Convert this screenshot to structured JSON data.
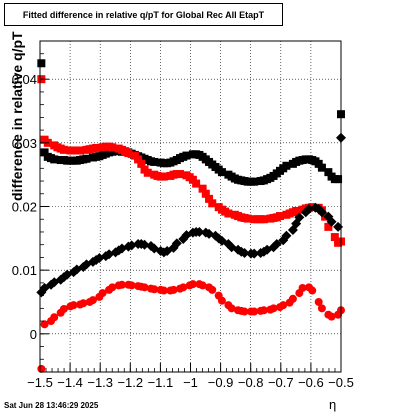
{
  "title": "Fitted difference in relative q/pT for Global Rec All EtapT",
  "datestamp": "Sat Jun 28 13:46:29 2025",
  "chart_data": {
    "type": "scatter",
    "title": "Fitted difference in relative q/pT for Global Rec All EtapT",
    "xlabel": "η",
    "ylabel": "difference in relative q/pT",
    "xlim": [
      -1.5,
      -0.5
    ],
    "ylim": [
      -0.006,
      0.046
    ],
    "xticks": [
      -1.5,
      -1.4,
      -1.3,
      -1.2,
      -1.1,
      -1,
      -0.9,
      -0.8,
      -0.7,
      -0.6,
      -0.5
    ],
    "xtick_labels": [
      "−1.5",
      "−1.4",
      "−1.3",
      "−1.2",
      "−1.1",
      "−1",
      "−0.9",
      "−0.8",
      "−0.7",
      "−0.6",
      "−0.5"
    ],
    "yticks": [
      0,
      0.01,
      0.02,
      0.03,
      0.04
    ],
    "ytick_labels": [
      "0",
      "0.01",
      "0.02",
      "0.03",
      "0.04"
    ],
    "grid": true,
    "x": [
      -1.4955,
      -1.4848,
      -1.4741,
      -1.4634,
      -1.4527,
      -1.442,
      -1.4313,
      -1.4205,
      -1.4098,
      -1.3991,
      -1.3884,
      -1.3777,
      -1.367,
      -1.3563,
      -1.3455,
      -1.3348,
      -1.3241,
      -1.3134,
      -1.3027,
      -1.292,
      -1.2813,
      -1.2705,
      -1.2598,
      -1.2491,
      -1.2384,
      -1.2277,
      -1.217,
      -1.2063,
      -1.1955,
      -1.1848,
      -1.1741,
      -1.1634,
      -1.1527,
      -1.142,
      -1.1313,
      -1.1205,
      -1.1098,
      -1.0991,
      -1.0884,
      -1.0777,
      -1.067,
      -1.0563,
      -1.0455,
      -1.0348,
      -1.0241,
      -1.0134,
      -1.0027,
      -0.992,
      -0.9813,
      -0.9705,
      -0.9598,
      -0.9491,
      -0.9384,
      -0.9277,
      -0.917,
      -0.9063,
      -0.8955,
      -0.8848,
      -0.8741,
      -0.8634,
      -0.8527,
      -0.842,
      -0.8313,
      -0.8205,
      -0.8098,
      -0.7991,
      -0.7884,
      -0.7777,
      -0.767,
      -0.7563,
      -0.7455,
      -0.7348,
      -0.7241,
      -0.7134,
      -0.7027,
      -0.692,
      -0.6813,
      -0.6705,
      -0.6598,
      -0.6491,
      -0.6384,
      -0.6277,
      -0.617,
      -0.6063,
      -0.5955,
      -0.5848,
      -0.5741,
      -0.5634,
      -0.5527,
      -0.542,
      -0.5313,
      -0.5205,
      -0.5098,
      -0.5
    ],
    "series": [
      {
        "marker": "square",
        "color": "#000000",
        "y": [
          0.0425,
          0.0285,
          0.0278,
          0.0276,
          0.0274,
          0.0273,
          0.0273,
          0.0272,
          0.0272,
          0.0272,
          0.0272,
          0.0273,
          0.0274,
          0.0275,
          0.0277,
          0.0278,
          0.0279,
          0.0281,
          0.0283,
          0.0285,
          0.0286,
          0.0287,
          0.0287,
          0.0286,
          0.0285,
          0.0283,
          0.0281,
          0.0279,
          0.0277,
          0.0275,
          0.0273,
          0.0271,
          0.027,
          0.0269,
          0.0268,
          0.0268,
          0.0269,
          0.0271,
          0.0273,
          0.0276,
          0.0278,
          0.028,
          0.0282,
          0.0282,
          0.0281,
          0.0278,
          0.0274,
          0.027,
          0.0266,
          0.0262,
          0.0258,
          0.0254,
          0.025,
          0.0247,
          0.0244,
          0.0242,
          0.0241,
          0.024,
          0.0239,
          0.0239,
          0.0239,
          0.024,
          0.0241,
          0.0243,
          0.0245,
          0.0248,
          0.0252,
          0.0256,
          0.026,
          0.0264,
          0.0267,
          0.027,
          0.0272,
          0.0273,
          0.0274,
          0.0274,
          0.0273,
          0.0271,
          0.0267,
          0.0261,
          0.0254,
          0.0247,
          0.0243,
          0.0243,
          0.0345
        ]
      },
      {
        "marker": "square",
        "color": "#ff0000",
        "y": [
          0.04,
          0.0305,
          0.03,
          0.0296,
          0.0293,
          0.0291,
          0.0289,
          0.0288,
          0.0288,
          0.0288,
          0.0288,
          0.0289,
          0.029,
          0.0291,
          0.0292,
          0.0293,
          0.0294,
          0.0294,
          0.0293,
          0.0291,
          0.0289,
          0.0287,
          0.0284,
          0.028,
          0.0274,
          0.0267,
          0.0258,
          0.0253,
          0.025,
          0.0248,
          0.0247,
          0.0247,
          0.0248,
          0.025,
          0.0251,
          0.0251,
          0.0249,
          0.0246,
          0.0242,
          0.0236,
          0.0228,
          0.022,
          0.0212,
          0.0205,
          0.0199,
          0.0195,
          0.0192,
          0.0189,
          0.0187,
          0.0185,
          0.0183,
          0.0182,
          0.0181,
          0.018,
          0.018,
          0.018,
          0.018,
          0.0181,
          0.0182,
          0.0183,
          0.0185,
          0.0187,
          0.0189,
          0.0191,
          0.0193,
          0.0195,
          0.0197,
          0.0198,
          0.0199,
          0.0198,
          0.0194,
          0.0184,
          0.0168,
          0.0152,
          0.0143,
          0.0145
        ]
      },
      {
        "marker": "diamond",
        "color": "#000000",
        "y": [
          0.0065,
          0.0072,
          0.0077,
          0.0081,
          0.0085,
          0.0089,
          0.0093,
          0.0097,
          0.0101,
          0.0105,
          0.0109,
          0.0113,
          0.0116,
          0.0119,
          0.0122,
          0.0125,
          0.0128,
          0.0131,
          0.0134,
          0.0137,
          0.0139,
          0.0141,
          0.0141,
          0.014,
          0.0138,
          0.0134,
          0.013,
          0.0128,
          0.013,
          0.0135,
          0.0142,
          0.0149,
          0.0155,
          0.0159,
          0.016,
          0.016,
          0.0159,
          0.0157,
          0.0154,
          0.015,
          0.0146,
          0.0141,
          0.0136,
          0.0132,
          0.0129,
          0.0127,
          0.0126,
          0.0126,
          0.0127,
          0.0129,
          0.0132,
          0.0136,
          0.0141,
          0.0147,
          0.0154,
          0.0163,
          0.0173,
          0.0183,
          0.0191,
          0.0196,
          0.0198,
          0.0196,
          0.0191,
          0.0184,
          0.0176,
          0.0168,
          0.0308
        ]
      },
      {
        "marker": "circle",
        "color": "#ff0000",
        "y": [
          -0.0055,
          0.0015,
          0.002,
          0.0026,
          0.0033,
          0.0039,
          0.0043,
          0.0045,
          0.0046,
          0.0048,
          0.005,
          0.0053,
          0.0058,
          0.0064,
          0.0069,
          0.0073,
          0.0076,
          0.0077,
          0.0077,
          0.0076,
          0.0075,
          0.0074,
          0.0073,
          0.0071,
          0.007,
          0.0069,
          0.0068,
          0.0068,
          0.0069,
          0.0071,
          0.0073,
          0.0076,
          0.0078,
          0.0078,
          0.0076,
          0.0073,
          0.0069,
          0.006,
          0.0052,
          0.0045,
          0.004,
          0.0037,
          0.0036,
          0.0035,
          0.0035,
          0.0035,
          0.0036,
          0.0037,
          0.0038,
          0.004,
          0.0042,
          0.0045,
          0.0049,
          0.0055,
          0.0064,
          0.0072,
          0.0073,
          0.0068,
          0.005,
          0.004,
          0.003,
          0.0027,
          0.003,
          0.0037
        ]
      }
    ]
  }
}
